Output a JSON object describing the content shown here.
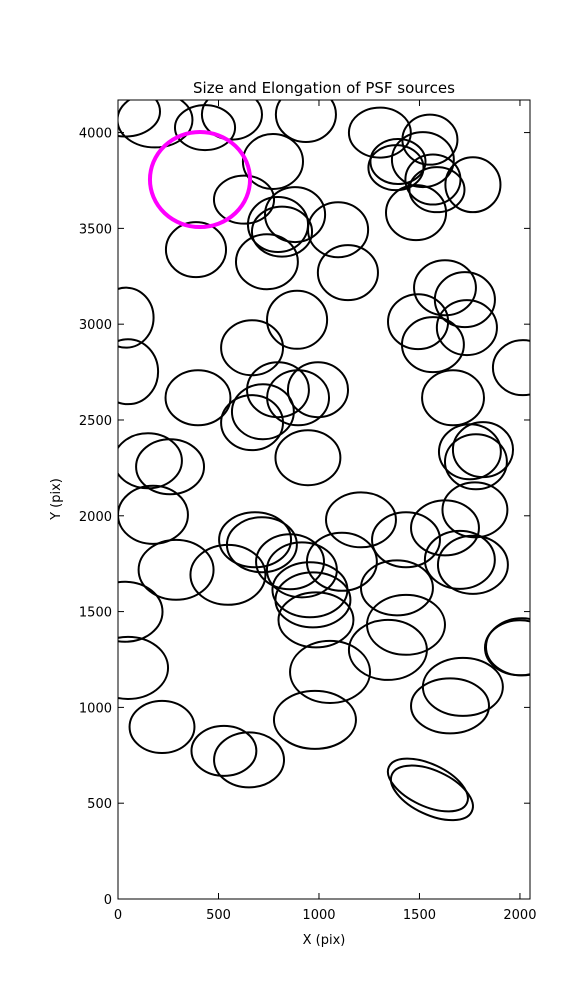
{
  "chart_data": {
    "type": "ellipse",
    "title": "Size and Elongation of PSF sources",
    "x_label": "X (pix)",
    "y_label": "Y (pix)",
    "xlim": [
      0,
      2050
    ],
    "ylim": [
      0,
      4170
    ],
    "xticks": [
      0,
      500,
      1000,
      1500,
      2000
    ],
    "yticks": [
      0,
      500,
      1000,
      1500,
      2000,
      2500,
      3000,
      3500,
      4000
    ],
    "color": "#000000",
    "x": [
      35,
      184,
      433,
      567,
      935,
      771,
      627,
      388,
      741,
      796,
      881,
      816,
      1095,
      1144,
      1303,
      1393,
      1383,
      1552,
      1517,
      1567,
      1587,
      1766,
      1483,
      40,
      891,
      667,
      1627,
      1726,
      1493,
      1736,
      1567,
      2015,
      50,
      398,
      796,
      995,
      896,
      721,
      667,
      1667,
      149,
      259,
      945,
      1751,
      1816,
      1781,
      174,
      1776,
      1209,
      1433,
      1627,
      682,
      716,
      289,
      547,
      856,
      915,
      1114,
      1701,
      1766,
      955,
      970,
      985,
      1388,
      1433,
      1343,
      35,
      50,
      1055,
      1716,
      1652,
      2000,
      2010,
      219,
      980,
      527,
      652,
      1542,
      1562
    ],
    "y": [
      4110,
      4066,
      4026,
      4094,
      4094,
      3849,
      3650,
      3389,
      3326,
      3520,
      3572,
      3483,
      3493,
      3269,
      4000,
      3849,
      3817,
      3963,
      3859,
      3755,
      3702,
      3728,
      3582,
      3034,
      3023,
      2877,
      3190,
      3128,
      3013,
      2982,
      2893,
      2773,
      2752,
      2616,
      2658,
      2658,
      2616,
      2543,
      2486,
      2616,
      2287,
      2256,
      2303,
      2334,
      2345,
      2282,
      2005,
      2031,
      1979,
      1875,
      1937,
      1875,
      1849,
      1718,
      1692,
      1760,
      1718,
      1760,
      1770,
      1744,
      1614,
      1561,
      1457,
      1624,
      1431,
      1300,
      1499,
      1206,
      1185,
      1107,
      1008,
      1311,
      1316,
      898,
      935,
      773,
      726,
      595,
      554
    ],
    "width": [
      348,
      373,
      299,
      299,
      299,
      299,
      299,
      299,
      308,
      299,
      299,
      299,
      299,
      299,
      308,
      274,
      274,
      274,
      308,
      274,
      274,
      274,
      299,
      274,
      299,
      308,
      308,
      299,
      299,
      299,
      308,
      299,
      299,
      323,
      308,
      299,
      308,
      308,
      308,
      308,
      338,
      338,
      323,
      308,
      299,
      308,
      348,
      323,
      348,
      338,
      338,
      358,
      348,
      373,
      373,
      338,
      348,
      348,
      348,
      348,
      373,
      373,
      373,
      358,
      388,
      388,
      373,
      398,
      398,
      398,
      388,
      348,
      358,
      323,
      408,
      323,
      348,
      428,
      438
    ],
    "height": [
      261,
      287,
      235,
      261,
      287,
      287,
      251,
      287,
      287,
      287,
      287,
      261,
      287,
      287,
      261,
      235,
      235,
      261,
      287,
      261,
      235,
      287,
      287,
      313,
      303,
      287,
      287,
      287,
      287,
      287,
      287,
      287,
      339,
      287,
      287,
      287,
      287,
      287,
      287,
      287,
      287,
      287,
      287,
      287,
      287,
      287,
      303,
      287,
      287,
      287,
      287,
      287,
      287,
      313,
      313,
      287,
      287,
      303,
      303,
      303,
      287,
      287,
      287,
      287,
      313,
      313,
      313,
      324,
      324,
      303,
      287,
      287,
      298,
      272,
      303,
      261,
      287,
      220,
      230
    ],
    "angle": [
      0,
      0,
      0,
      0,
      0,
      0,
      0,
      0,
      0,
      0,
      0,
      0,
      0,
      0,
      0,
      0,
      0,
      0,
      0,
      0,
      0,
      0,
      0,
      0,
      0,
      0,
      0,
      0,
      0,
      0,
      0,
      0,
      0,
      0,
      0,
      0,
      0,
      0,
      0,
      0,
      0,
      0,
      0,
      0,
      0,
      0,
      0,
      0,
      0,
      0,
      0,
      0,
      0,
      0,
      0,
      0,
      0,
      0,
      0,
      0,
      0,
      0,
      0,
      0,
      0,
      0,
      0,
      0,
      0,
      0,
      0,
      0,
      0,
      0,
      0,
      0,
      0,
      -25,
      -25
    ],
    "highlight": {
      "x": 408,
      "y": 3755,
      "width": 498,
      "height": 496,
      "color": "#ff00ff"
    }
  }
}
